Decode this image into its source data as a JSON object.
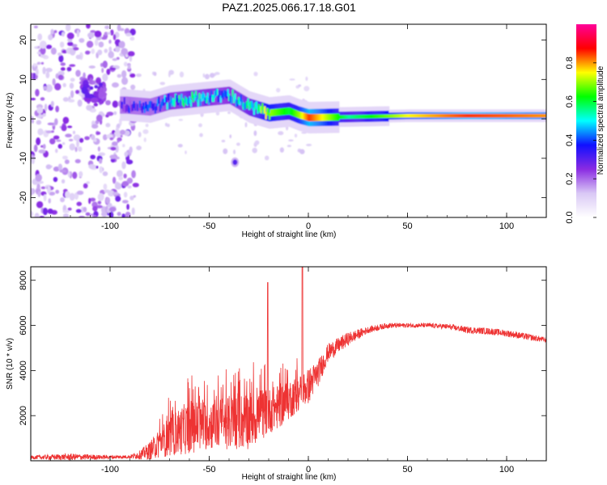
{
  "title": "PAZ1.2025.066.17.18.G01",
  "chart_data": [
    {
      "type": "heatmap",
      "xlabel": "Height of straight line (km)",
      "ylabel": "Frequency (Hz)",
      "xlim": [
        -140,
        120
      ],
      "ylim": [
        -25,
        24
      ],
      "xticks": [
        -100,
        -50,
        0,
        50,
        100
      ],
      "yticks": [
        -20,
        -10,
        0,
        10,
        20
      ],
      "colorbar": {
        "label": "Normalized spectral amplitude",
        "range": [
          0,
          1
        ],
        "ticks": [
          0.0,
          0.2,
          0.4,
          0.6,
          0.8
        ],
        "tick_labels": [
          "0.0",
          "0.2",
          "0.4",
          "0.6",
          "0.8"
        ],
        "colormap": [
          "#ffffff",
          "#d9c8f5",
          "#8a2be2",
          "#1010ff",
          "#00ffff",
          "#00ff00",
          "#ffff00",
          "#ff0000",
          "#ff0099"
        ]
      },
      "features": {
        "noise_region_x": [
          -140,
          -87
        ],
        "signal_ridge": [
          {
            "x": -92,
            "f": 3.5,
            "amp": 0.3
          },
          {
            "x": -80,
            "f": 3.0,
            "amp": 0.35
          },
          {
            "x": -70,
            "f": 4.5,
            "amp": 0.45
          },
          {
            "x": -60,
            "f": 5.0,
            "amp": 0.5
          },
          {
            "x": -50,
            "f": 5.5,
            "amp": 0.45
          },
          {
            "x": -40,
            "f": 6.0,
            "amp": 0.45
          },
          {
            "x": -30,
            "f": 3.0,
            "amp": 0.5
          },
          {
            "x": -20,
            "f": 1.5,
            "amp": 0.7
          },
          {
            "x": -10,
            "f": 2.0,
            "amp": 0.6
          },
          {
            "x": -5,
            "f": 1.0,
            "amp": 0.7
          },
          {
            "x": 0,
            "f": 0.3,
            "amp": 0.85
          },
          {
            "x": 20,
            "f": 0.5,
            "amp": 0.55
          },
          {
            "x": 50,
            "f": 0.8,
            "amp": 0.75
          },
          {
            "x": 80,
            "f": 0.8,
            "amp": 0.85
          },
          {
            "x": 120,
            "f": 0.8,
            "amp": 0.8
          }
        ],
        "secondary_blob": {
          "x": -37,
          "f": -11,
          "amp": 0.3
        }
      }
    },
    {
      "type": "line",
      "xlabel": "Height of straight line (km)",
      "ylabel": "SNR (10 * v/v)",
      "xlim": [
        -140,
        120
      ],
      "ylim": [
        0,
        8600
      ],
      "xticks": [
        -100,
        -50,
        0,
        50,
        100
      ],
      "yticks": [
        2000,
        4000,
        6000,
        8000
      ],
      "color": "#ee3333",
      "envelope": {
        "x": [
          -140,
          -120,
          -100,
          -90,
          -85,
          -80,
          -70,
          -60,
          -50,
          -40,
          -30,
          -25,
          -20,
          -15,
          -10,
          -5,
          0,
          5,
          10,
          20,
          30,
          40,
          50,
          60,
          70,
          80,
          90,
          100,
          110,
          120
        ],
        "mean": [
          150,
          170,
          160,
          180,
          260,
          450,
          1100,
          1500,
          1600,
          1700,
          1800,
          2000,
          2200,
          2400,
          2700,
          3000,
          3300,
          3900,
          4800,
          5400,
          5800,
          6000,
          6000,
          6000,
          5950,
          5800,
          5750,
          5650,
          5500,
          5350
        ],
        "spread": [
          80,
          150,
          80,
          80,
          200,
          400,
          900,
          1200,
          1100,
          1200,
          1300,
          1200,
          1000,
          1000,
          900,
          800,
          800,
          600,
          400,
          300,
          150,
          120,
          100,
          100,
          120,
          150,
          150,
          150,
          150,
          120
        ]
      },
      "spikes": [
        {
          "x": -20.5,
          "y": 7900
        },
        {
          "x": -3,
          "y": 8600
        }
      ]
    }
  ]
}
